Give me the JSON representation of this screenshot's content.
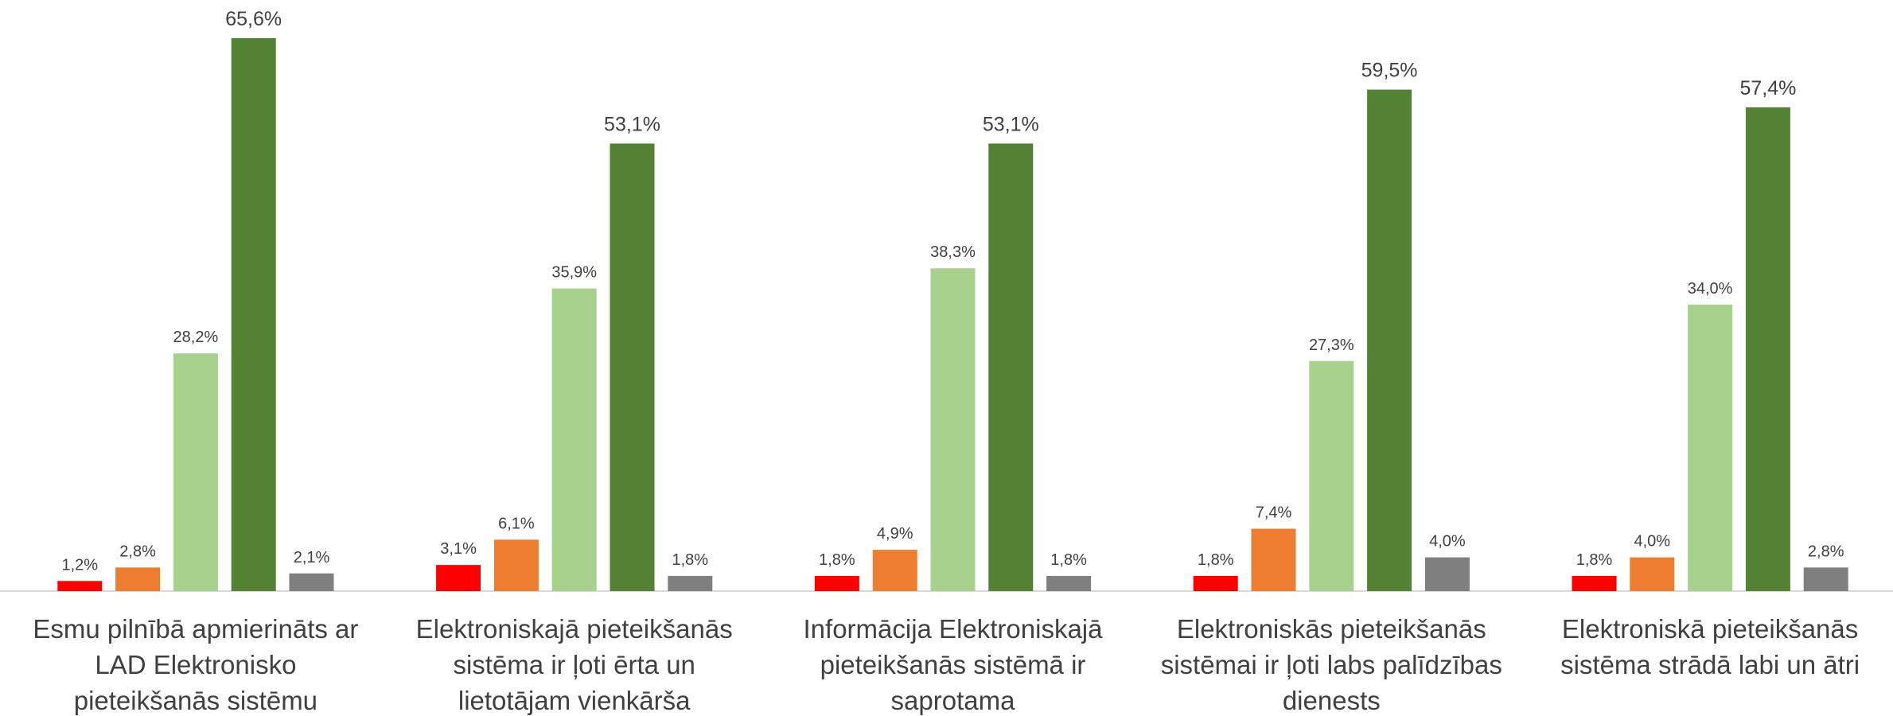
{
  "chart_data": {
    "type": "bar",
    "categories": [
      "Esmu pilnībā apmierināts ar LAD Elektronisko pieteikšanās sistēmu",
      "Elektroniskajā pieteikšanās sistēma ir ļoti ērta un lietotājam vienkārša",
      "Informācija Elektroniskajā pieteikšanās sistēmā ir saprotama",
      "Elektroniskās pieteikšanās sistēmai ir ļoti labs palīdzības dienests",
      "Elektroniskā pieteikšanās sistēma strādā labi un ātri"
    ],
    "series": [
      {
        "color": "#ff0000",
        "values": [
          1.2,
          3.1,
          1.8,
          1.8,
          1.8
        ],
        "value_labels": [
          "1,2%",
          "3,1%",
          "1,8%",
          "1,8%",
          "1,8%"
        ]
      },
      {
        "color": "#ed7d31",
        "values": [
          2.8,
          6.1,
          4.9,
          7.4,
          4.0
        ],
        "value_labels": [
          "2,8%",
          "6,1%",
          "4,9%",
          "7,4%",
          "4,0%"
        ]
      },
      {
        "color": "#a9d18e",
        "values": [
          28.2,
          35.9,
          38.3,
          27.3,
          34.0
        ],
        "value_labels": [
          "28,2%",
          "35,9%",
          "38,3%",
          "27,3%",
          "34,0%"
        ]
      },
      {
        "color": "#548235",
        "values": [
          65.6,
          53.1,
          53.1,
          59.5,
          57.4
        ],
        "value_labels": [
          "65,6%",
          "53,1%",
          "53,1%",
          "59,5%",
          "57,4%"
        ]
      },
      {
        "color": "#7f7f7f",
        "values": [
          2.1,
          1.8,
          1.8,
          4.0,
          2.8
        ],
        "value_labels": [
          "2,1%",
          "1,8%",
          "1,8%",
          "4,0%",
          "2,8%"
        ]
      }
    ]
  }
}
